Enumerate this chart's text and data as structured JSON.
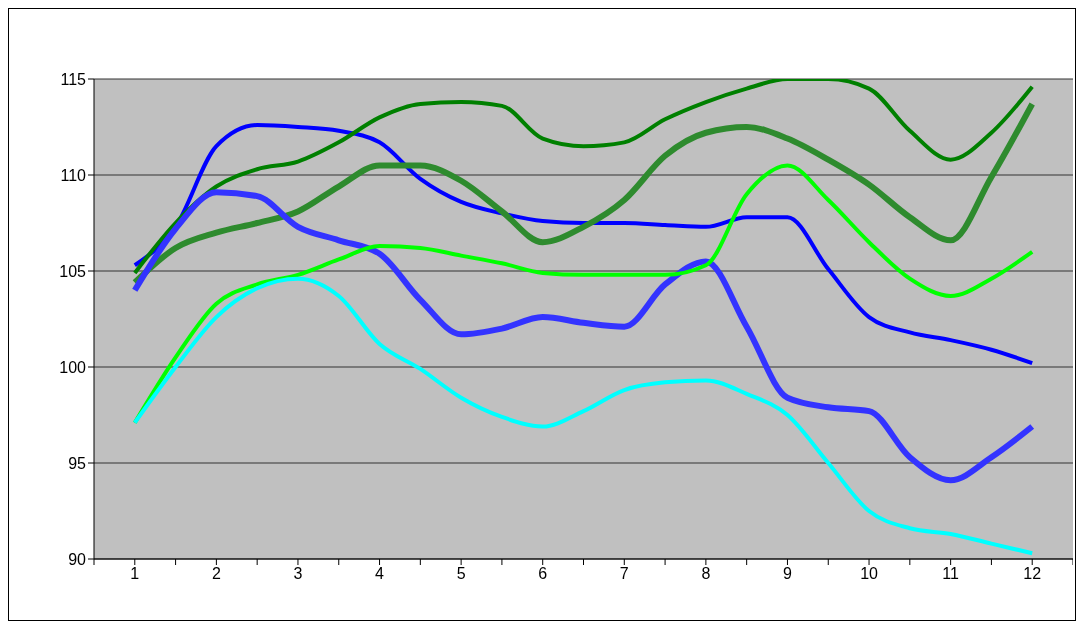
{
  "chart_data": {
    "type": "line",
    "x": [
      1,
      1.5,
      2,
      2.5,
      3,
      3.5,
      4,
      4.5,
      5,
      5.5,
      6,
      6.5,
      7,
      7.5,
      8,
      8.5,
      9,
      9.5,
      10,
      10.5,
      11,
      11.5,
      12
    ],
    "series": [
      {
        "color": "#0000ff",
        "values": [
          105.3,
          107.3,
          111.5,
          112.6,
          112.5,
          112.3,
          111.7,
          109.8,
          108.6,
          108.0,
          107.6,
          107.5,
          107.5,
          107.4,
          107.3,
          107.8,
          107.8,
          105.1,
          102.6,
          101.8,
          101.4,
          100.9,
          100.2
        ]
      },
      {
        "color": "#008000",
        "values": [
          104.9,
          107.5,
          109.4,
          110.3,
          110.7,
          111.7,
          113.0,
          113.7,
          113.8,
          113.6,
          111.9,
          111.5,
          111.7,
          112.9,
          113.8,
          114.5,
          115.0,
          115.0,
          114.5,
          112.3,
          110.8,
          112.2,
          114.6
        ]
      },
      {
        "color": "#2e8b2e",
        "values": [
          104.4,
          106.2,
          107.0,
          107.5,
          108.1,
          109.4,
          110.5,
          110.5,
          109.7,
          108.1,
          106.5,
          107.3,
          108.7,
          111.0,
          112.2,
          112.5,
          111.9,
          110.8,
          109.5,
          107.8,
          106.6,
          109.9,
          113.7
        ]
      },
      {
        "color": "#3333ff",
        "values": [
          104.0,
          107.2,
          109.1,
          108.9,
          107.3,
          106.6,
          105.9,
          103.5,
          101.7,
          102.0,
          102.6,
          102.3,
          102.1,
          104.3,
          105.5,
          102.1,
          98.4,
          97.9,
          97.7,
          95.3,
          94.1,
          95.3,
          96.9
        ]
      },
      {
        "color": "#00ff00",
        "values": [
          97.1,
          100.5,
          103.3,
          104.3,
          104.8,
          105.6,
          106.3,
          106.2,
          105.8,
          105.4,
          104.9,
          104.8,
          104.8,
          104.8,
          105.3,
          109.0,
          110.5,
          108.7,
          106.5,
          104.6,
          103.7,
          104.6,
          106.0
        ]
      },
      {
        "color": "#00ffff",
        "values": [
          97.1,
          100.0,
          102.6,
          104.1,
          104.6,
          103.7,
          101.2,
          99.9,
          98.4,
          97.4,
          96.9,
          97.7,
          98.8,
          99.2,
          99.3,
          98.6,
          97.5,
          95.0,
          92.5,
          91.6,
          91.3,
          90.8,
          90.3
        ]
      }
    ],
    "xlim": [
      0.5,
      12.5
    ],
    "xticks": [
      {
        "value": 0.5,
        "label": null
      },
      1,
      {
        "value": 1.5,
        "label": null
      },
      2,
      {
        "value": 2.5,
        "label": null
      },
      3,
      {
        "value": 3.5,
        "label": null
      },
      4,
      {
        "value": 4.5,
        "label": null
      },
      5,
      {
        "value": 5.5,
        "label": null
      },
      6,
      {
        "value": 6.5,
        "label": null
      },
      7,
      {
        "value": 7.5,
        "label": null
      },
      8,
      {
        "value": 8.5,
        "label": null
      },
      9,
      {
        "value": 9.5,
        "label": null
      },
      10,
      {
        "value": 10.5,
        "label": null
      },
      11,
      {
        "value": 11.5,
        "label": null
      },
      12,
      {
        "value": 12.5,
        "label": null
      }
    ],
    "ylim": [
      90,
      115
    ],
    "yticks": [
      90,
      95,
      100,
      105,
      110,
      115
    ],
    "grid": "y",
    "marker": "none",
    "line_style": "solid"
  }
}
